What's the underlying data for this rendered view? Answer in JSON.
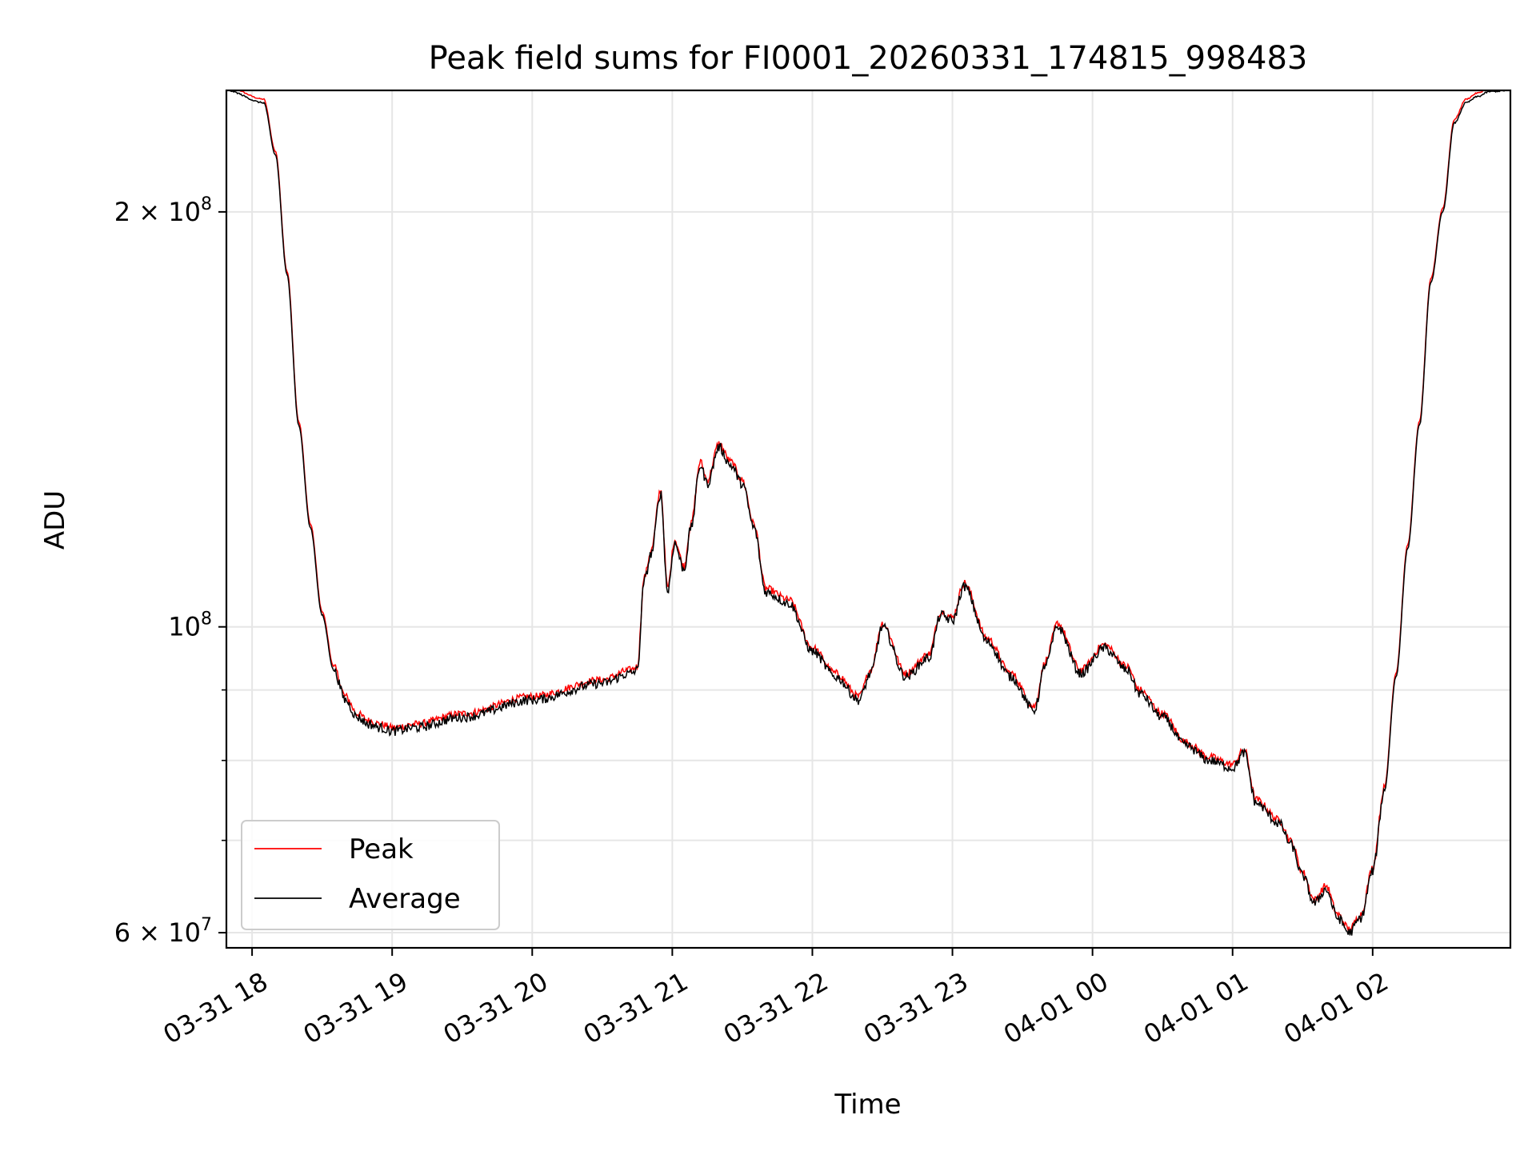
{
  "chart_data": {
    "type": "line",
    "title": "Peak field sums for FI0001_20260331_174815_998483",
    "xlabel": "Time",
    "ylabel": "ADU",
    "y_scale": "log",
    "x_unit": "datetime",
    "xlim": [
      "2026-03-31T17:49:00",
      "2026-04-01T02:59:00"
    ],
    "ylim": [
      58500000,
      245000000
    ],
    "x_ticks": [
      {
        "t": "2026-03-31T18:00:00",
        "label": "03-31 18"
      },
      {
        "t": "2026-03-31T19:00:00",
        "label": "03-31 19"
      },
      {
        "t": "2026-03-31T20:00:00",
        "label": "03-31 20"
      },
      {
        "t": "2026-03-31T21:00:00",
        "label": "03-31 21"
      },
      {
        "t": "2026-03-31T22:00:00",
        "label": "03-31 22"
      },
      {
        "t": "2026-03-31T23:00:00",
        "label": "03-31 23"
      },
      {
        "t": "2026-04-01T00:00:00",
        "label": "04-01 00"
      },
      {
        "t": "2026-04-01T01:00:00",
        "label": "04-01 01"
      },
      {
        "t": "2026-04-01T02:00:00",
        "label": "04-01 02"
      }
    ],
    "y_major_ticks": [
      {
        "value": 60000000,
        "base": "6 × 10",
        "exp": "7"
      },
      {
        "value": 100000000,
        "base": "10",
        "exp": "8"
      },
      {
        "value": 200000000,
        "base": "2 × 10",
        "exp": "8"
      }
    ],
    "y_minor_ticks": [
      70000000,
      80000000,
      90000000
    ],
    "grid": true,
    "legend_position": "lower-left",
    "series": [
      {
        "name": "Peak",
        "color": "#ff0000",
        "offset_factor": 1.006,
        "jitter": 0.006
      },
      {
        "name": "Average",
        "color": "#000000",
        "jitter": 0.008,
        "x": [
          "2026-03-31T17:49:00",
          "2026-03-31T18:05:00",
          "2026-03-31T18:10:00",
          "2026-03-31T18:15:00",
          "2026-03-31T18:20:00",
          "2026-03-31T18:25:00",
          "2026-03-31T18:30:00",
          "2026-03-31T18:35:00",
          "2026-03-31T18:40:00",
          "2026-03-31T18:45:00",
          "2026-03-31T18:50:00",
          "2026-03-31T18:55:00",
          "2026-03-31T19:00:00",
          "2026-03-31T19:10:00",
          "2026-03-31T19:30:00",
          "2026-03-31T20:00:00",
          "2026-03-31T20:30:00",
          "2026-03-31T20:42:00",
          "2026-03-31T20:45:00",
          "2026-03-31T20:48:00",
          "2026-03-31T20:51:00",
          "2026-03-31T20:55:00",
          "2026-03-31T20:58:00",
          "2026-03-31T21:01:00",
          "2026-03-31T21:05:00",
          "2026-03-31T21:08:00",
          "2026-03-31T21:12:00",
          "2026-03-31T21:15:00",
          "2026-03-31T21:20:00",
          "2026-03-31T21:25:00",
          "2026-03-31T21:30:00",
          "2026-03-31T21:35:00",
          "2026-03-31T21:40:00",
          "2026-03-31T21:50:00",
          "2026-03-31T22:00:00",
          "2026-03-31T22:10:00",
          "2026-03-31T22:20:00",
          "2026-03-31T22:25:00",
          "2026-03-31T22:30:00",
          "2026-03-31T22:40:00",
          "2026-03-31T22:50:00",
          "2026-03-31T22:55:00",
          "2026-03-31T23:00:00",
          "2026-03-31T23:05:00",
          "2026-03-31T23:15:00",
          "2026-03-31T23:25:00",
          "2026-03-31T23:35:00",
          "2026-03-31T23:40:00",
          "2026-03-31T23:45:00",
          "2026-03-31T23:55:00",
          "2026-04-01T00:05:00",
          "2026-04-01T00:15:00",
          "2026-04-01T00:20:00",
          "2026-04-01T00:30:00",
          "2026-04-01T00:40:00",
          "2026-04-01T00:50:00",
          "2026-04-01T01:00:00",
          "2026-04-01T01:05:00",
          "2026-04-01T01:10:00",
          "2026-04-01T01:20:00",
          "2026-04-01T01:25:00",
          "2026-04-01T01:30:00",
          "2026-04-01T01:35:00",
          "2026-04-01T01:40:00",
          "2026-04-01T01:45:00",
          "2026-04-01T01:50:00",
          "2026-04-01T01:55:00",
          "2026-04-01T02:00:00",
          "2026-04-01T02:05:00",
          "2026-04-01T02:10:00",
          "2026-04-01T02:15:00",
          "2026-04-01T02:20:00",
          "2026-04-01T02:25:00",
          "2026-04-01T02:30:00",
          "2026-04-01T02:35:00",
          "2026-04-01T02:40:00",
          "2026-04-01T02:45:00",
          "2026-04-01T02:50:00",
          "2026-04-01T02:59:00"
        ],
        "values": [
          245000000,
          240000000,
          220000000,
          180000000,
          140000000,
          118000000,
          102000000,
          93000000,
          88500000,
          86000000,
          85000000,
          84500000,
          84000000,
          84500000,
          86000000,
          88500000,
          91000000,
          92500000,
          93000000,
          108000000,
          113000000,
          125000000,
          106000000,
          115000000,
          110000000,
          118000000,
          131000000,
          127000000,
          135000000,
          131000000,
          127000000,
          118000000,
          106000000,
          104000000,
          96000000,
          92000000,
          88500000,
          92500000,
          100000000,
          92000000,
          95000000,
          102000000,
          101000000,
          107000000,
          97500000,
          92000000,
          87000000,
          94000000,
          100000000,
          92500000,
          96500000,
          93000000,
          89500000,
          86000000,
          82000000,
          80000000,
          79000000,
          81000000,
          74500000,
          72000000,
          69500000,
          66000000,
          63000000,
          64500000,
          61500000,
          60000000,
          61500000,
          66500000,
          76000000,
          92000000,
          114000000,
          140000000,
          178000000,
          200000000,
          232000000,
          240000000,
          242500000,
          244500000,
          245000000
        ]
      }
    ]
  }
}
